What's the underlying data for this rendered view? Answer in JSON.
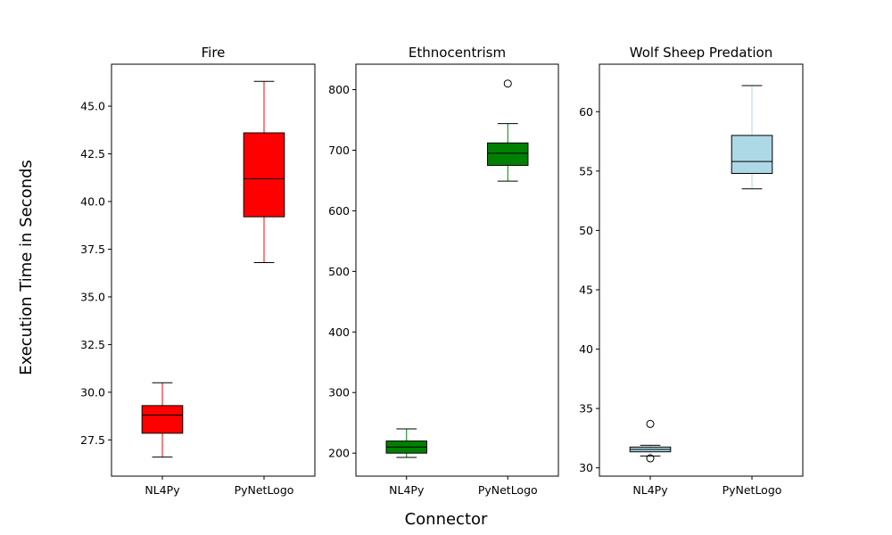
{
  "figure": {
    "xlabel": "Connector",
    "ylabel": "Execution Time in Seconds"
  },
  "chart_data": [
    {
      "type": "box",
      "title": "Fire",
      "categories": [
        "NL4Py",
        "PyNetLogo"
      ],
      "color": "#ff0000",
      "whisker_color": "#ff0000",
      "ylim": [
        25.6,
        47.2
      ],
      "yticks": [
        27.5,
        30.0,
        32.5,
        35.0,
        37.5,
        40.0,
        42.5,
        45.0
      ],
      "ytick_labels": [
        "27.5",
        "30.0",
        "32.5",
        "35.0",
        "37.5",
        "40.0",
        "42.5",
        "45.0"
      ],
      "boxes": [
        {
          "whislo": 26.6,
          "q1": 27.85,
          "med": 28.8,
          "q3": 29.3,
          "whishi": 30.5,
          "fliers": []
        },
        {
          "whislo": 36.8,
          "q1": 39.2,
          "med": 41.2,
          "q3": 43.6,
          "whishi": 46.3,
          "fliers": []
        }
      ]
    },
    {
      "type": "box",
      "title": "Ethnocentrism",
      "categories": [
        "NL4Py",
        "PyNetLogo"
      ],
      "color": "#008000",
      "whisker_color": "#008000",
      "ylim": [
        162,
        842
      ],
      "yticks": [
        200,
        300,
        400,
        500,
        600,
        700,
        800
      ],
      "ytick_labels": [
        "200",
        "300",
        "400",
        "500",
        "600",
        "700",
        "800"
      ],
      "boxes": [
        {
          "whislo": 193,
          "q1": 200,
          "med": 210,
          "q3": 220,
          "whishi": 240,
          "fliers": []
        },
        {
          "whislo": 649,
          "q1": 675,
          "med": 695,
          "q3": 712,
          "whishi": 744,
          "fliers": [
            810
          ]
        }
      ]
    },
    {
      "type": "box",
      "title": "Wolf Sheep Predation",
      "categories": [
        "NL4Py",
        "PyNetLogo"
      ],
      "color": "#add8e6",
      "whisker_color": "#add8e6",
      "ylim": [
        29.3,
        64.0
      ],
      "yticks": [
        30,
        35,
        40,
        45,
        50,
        55,
        60
      ],
      "ytick_labels": [
        "30",
        "35",
        "40",
        "45",
        "50",
        "55",
        "60"
      ],
      "boxes": [
        {
          "whislo": 31.0,
          "q1": 31.35,
          "med": 31.55,
          "q3": 31.75,
          "whishi": 31.9,
          "fliers": [
            33.7,
            30.8
          ]
        },
        {
          "whislo": 53.5,
          "q1": 54.8,
          "med": 55.8,
          "q3": 58.0,
          "whishi": 62.2,
          "fliers": []
        }
      ]
    }
  ]
}
